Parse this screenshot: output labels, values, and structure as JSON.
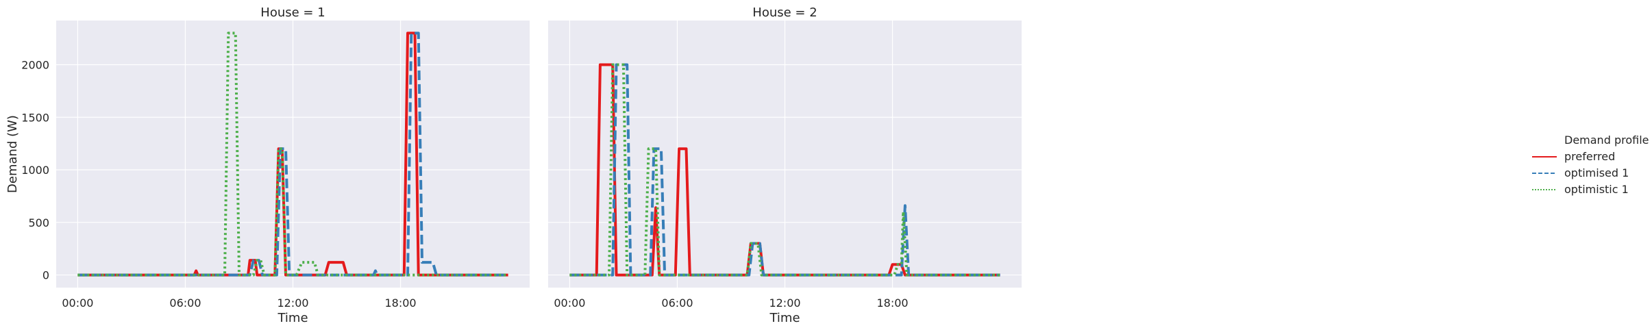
{
  "chart_data": {
    "type": "line",
    "xlabel": "Time",
    "ylabel": "Demand (W)",
    "x_ticks": [
      {
        "hour": 0,
        "label": "00:00"
      },
      {
        "hour": 6,
        "label": "06:00"
      },
      {
        "hour": 12,
        "label": "12:00"
      },
      {
        "hour": 18,
        "label": "18:00"
      }
    ],
    "y_ticks": [
      0,
      500,
      1000,
      1500,
      2000
    ],
    "xlim": [
      -1.2,
      25.2
    ],
    "ylim": [
      -120,
      2420
    ],
    "grid": true,
    "legend": {
      "title": "Demand profile",
      "placement": "right",
      "entries": [
        "preferred",
        "optimised 1",
        "optimistic 1"
      ]
    },
    "series_styles": [
      {
        "name": "preferred",
        "color": "#e41a1c",
        "dash": "solid"
      },
      {
        "name": "optimised 1",
        "color": "#377eb8",
        "dash": "dashed"
      },
      {
        "name": "optimistic 1",
        "color": "#4daf4a",
        "dash": "dotted"
      }
    ],
    "panels": [
      {
        "title": "House = 1",
        "series": [
          {
            "name": "preferred",
            "points": [
              [
                0,
                0
              ],
              [
                6.5,
                0
              ],
              [
                6.6,
                40
              ],
              [
                6.7,
                0
              ],
              [
                9.5,
                0
              ],
              [
                9.6,
                140
              ],
              [
                9.9,
                140
              ],
              [
                10,
                0
              ],
              [
                11,
                0
              ],
              [
                11.2,
                1200
              ],
              [
                11.4,
                1200
              ],
              [
                11.6,
                0
              ],
              [
                13.8,
                0
              ],
              [
                14,
                120
              ],
              [
                14.8,
                120
              ],
              [
                15,
                0
              ],
              [
                18.2,
                0
              ],
              [
                18.4,
                2300
              ],
              [
                18.8,
                2300
              ],
              [
                19,
                0
              ],
              [
                24,
                0
              ]
            ]
          },
          {
            "name": "optimised 1",
            "points": [
              [
                0,
                0
              ],
              [
                9.6,
                0
              ],
              [
                9.8,
                140
              ],
              [
                10.1,
                140
              ],
              [
                10.3,
                0
              ],
              [
                11.1,
                0
              ],
              [
                11.3,
                1200
              ],
              [
                11.6,
                1200
              ],
              [
                11.8,
                0
              ],
              [
                16.5,
                0
              ],
              [
                16.6,
                40
              ],
              [
                16.7,
                0
              ],
              [
                18.4,
                0
              ],
              [
                18.6,
                2300
              ],
              [
                19,
                2300
              ],
              [
                19.2,
                120
              ],
              [
                19.8,
                120
              ],
              [
                20,
                0
              ],
              [
                24,
                0
              ]
            ]
          },
          {
            "name": "optimistic 1",
            "points": [
              [
                0,
                0
              ],
              [
                8.2,
                0
              ],
              [
                8.4,
                2300
              ],
              [
                8.8,
                2300
              ],
              [
                9,
                0
              ],
              [
                9.8,
                0
              ],
              [
                10,
                140
              ],
              [
                10.2,
                140
              ],
              [
                10.4,
                0
              ],
              [
                11,
                0
              ],
              [
                11.2,
                1200
              ],
              [
                11.4,
                1200
              ],
              [
                11.6,
                0
              ],
              [
                12.2,
                0
              ],
              [
                12.5,
                120
              ],
              [
                13.2,
                120
              ],
              [
                13.4,
                0
              ],
              [
                24,
                0
              ]
            ]
          }
        ]
      },
      {
        "title": "House = 2",
        "series": [
          {
            "name": "preferred",
            "points": [
              [
                0,
                0
              ],
              [
                1.5,
                0
              ],
              [
                1.7,
                2000
              ],
              [
                2.4,
                2000
              ],
              [
                2.6,
                0
              ],
              [
                4.6,
                0
              ],
              [
                4.8,
                640
              ],
              [
                5,
                0
              ],
              [
                5.9,
                0
              ],
              [
                6.1,
                1200
              ],
              [
                6.5,
                1200
              ],
              [
                6.7,
                0
              ],
              [
                9.9,
                0
              ],
              [
                10.1,
                300
              ],
              [
                10.6,
                300
              ],
              [
                10.8,
                0
              ],
              [
                17.8,
                0
              ],
              [
                18,
                100
              ],
              [
                18.5,
                100
              ],
              [
                18.7,
                0
              ],
              [
                24,
                0
              ]
            ]
          },
          {
            "name": "optimised 1",
            "points": [
              [
                0,
                0
              ],
              [
                2.4,
                0
              ],
              [
                2.6,
                2000
              ],
              [
                3.2,
                2000
              ],
              [
                3.4,
                0
              ],
              [
                4.5,
                0
              ],
              [
                4.7,
                1200
              ],
              [
                5.1,
                1200
              ],
              [
                5.3,
                0
              ],
              [
                10,
                0
              ],
              [
                10.2,
                300
              ],
              [
                10.6,
                300
              ],
              [
                10.8,
                0
              ],
              [
                18.5,
                0
              ],
              [
                18.7,
                660
              ],
              [
                18.9,
                0
              ],
              [
                24,
                0
              ]
            ]
          },
          {
            "name": "optimistic 1",
            "points": [
              [
                0,
                0
              ],
              [
                2.2,
                0
              ],
              [
                2.4,
                2000
              ],
              [
                3,
                2000
              ],
              [
                3.2,
                0
              ],
              [
                4.2,
                0
              ],
              [
                4.4,
                1200
              ],
              [
                4.8,
                1200
              ],
              [
                5,
                0
              ],
              [
                9.9,
                0
              ],
              [
                10.1,
                300
              ],
              [
                10.5,
                300
              ],
              [
                10.7,
                0
              ],
              [
                18.1,
                0
              ],
              [
                18.3,
                100
              ],
              [
                18.5,
                100
              ],
              [
                18.6,
                600
              ],
              [
                18.8,
                0
              ],
              [
                24,
                0
              ]
            ]
          }
        ]
      }
    ]
  }
}
